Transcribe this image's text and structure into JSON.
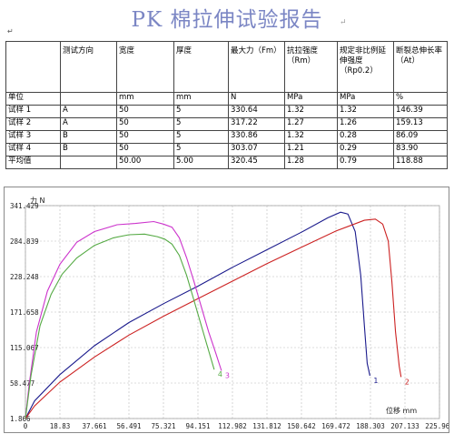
{
  "title": "PK 棉拉伸试验报告",
  "table": {
    "headers": [
      "",
      "测试方向",
      "宽度",
      "厚度",
      "最大力（Fm）",
      "抗拉强度（Rm）",
      "规定非比例延伸强度（Rp0.2）",
      "断裂总伸长率（At）"
    ],
    "units": [
      "单位",
      "",
      "mm",
      "mm",
      "N",
      "MPa",
      "MPa",
      "%"
    ],
    "rows": [
      [
        "试样 1",
        "A",
        "50",
        "5",
        "330.64",
        "1.32",
        "1.32",
        "146.39"
      ],
      [
        "试样 2",
        "A",
        "50",
        "5",
        "317.22",
        "1.27",
        "1.26",
        "159.13"
      ],
      [
        "试样 3",
        "B",
        "50",
        "5",
        "330.86",
        "1.32",
        "0.28",
        "86.09"
      ],
      [
        "试样 4",
        "B",
        "50",
        "5",
        "303.07",
        "1.21",
        "0.29",
        "83.90"
      ],
      [
        "平均值",
        "",
        "50.00",
        "5.00",
        "320.45",
        "1.28",
        "0.79",
        "118.88"
      ]
    ]
  },
  "chart_data": {
    "type": "line",
    "title": "",
    "xlabel": "位移 mm",
    "ylabel": "力 N",
    "xlim": [
      0,
      225.963
    ],
    "ylim": [
      1.866,
      341.429
    ],
    "x_ticks": [
      "0",
      "18.83",
      "37.661",
      "56.491",
      "75.321",
      "94.151",
      "112.982",
      "131.812",
      "150.642",
      "169.472",
      "188.303",
      "207.133",
      "225.963"
    ],
    "y_ticks": [
      "1.866",
      "58.477",
      "115.067",
      "171.658",
      "228.248",
      "284.839",
      "341.429"
    ],
    "grid": true,
    "series": [
      {
        "name": "1",
        "color": "#1a1a8c",
        "x": [
          0,
          5,
          18.83,
          37.661,
          56.491,
          75.321,
          94.151,
          112.982,
          131.812,
          150.642,
          165,
          172,
          176,
          180,
          183,
          185,
          186.5,
          188
        ],
        "y": [
          1.866,
          30,
          72,
          118,
          155,
          185,
          213,
          243,
          271,
          299,
          322,
          331,
          328,
          300,
          230,
          150,
          90,
          70
        ]
      },
      {
        "name": "2",
        "color": "#cc2222",
        "x": [
          0,
          5,
          18.83,
          37.661,
          56.491,
          75.321,
          94.151,
          112.982,
          131.812,
          150.642,
          169.472,
          185,
          191,
          195,
          198,
          200,
          202,
          204,
          205
        ],
        "y": [
          1.866,
          22,
          60,
          100,
          135,
          165,
          193,
          221,
          249,
          275,
          301,
          318,
          320,
          312,
          285,
          220,
          140,
          85,
          68
        ]
      },
      {
        "name": "3",
        "color": "#cc33cc",
        "x": [
          0,
          2,
          6,
          12,
          18.83,
          28,
          37.661,
          50,
          60,
          70,
          75.321,
          80,
          84,
          88,
          92,
          96,
          100,
          104,
          107
        ],
        "y": [
          1.866,
          55,
          140,
          205,
          248,
          283,
          300,
          311,
          313,
          316,
          312,
          307,
          290,
          258,
          220,
          180,
          140,
          105,
          78
        ]
      },
      {
        "name": "4",
        "color": "#55aa44",
        "x": [
          0,
          3,
          8,
          14,
          20,
          28,
          37.661,
          48,
          56.491,
          65,
          72,
          76,
          80,
          84,
          88,
          92,
          96,
          100,
          103
        ],
        "y": [
          1.866,
          70,
          150,
          200,
          232,
          258,
          278,
          290,
          295,
          296,
          292,
          288,
          280,
          262,
          230,
          190,
          150,
          110,
          80
        ]
      }
    ]
  },
  "markers": {
    "para": "↵",
    "box": "■"
  }
}
